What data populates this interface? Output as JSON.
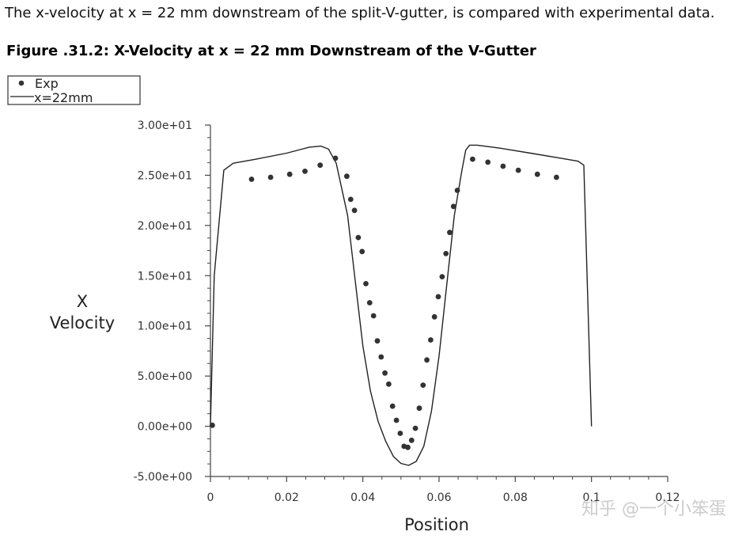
{
  "page": {
    "intro_text": "The x-velocity at x = 22 mm downstream of the split-V-gutter, is compared with experimental data.",
    "figure_caption": "Figure .31.2: X-Velocity at x = 22 mm Downstream of the V-Gutter",
    "watermark": "知乎 @一个小笨蛋"
  },
  "chart_data": {
    "type": "scatter",
    "title": "",
    "xlabel": "Position",
    "ylabel": "X\nVelocity",
    "xlim": [
      0,
      0.12
    ],
    "ylim": [
      -5,
      30
    ],
    "x_ticks": [
      0,
      0.02,
      0.04,
      0.06,
      0.08,
      0.1,
      0.12
    ],
    "x_tick_labels": [
      "0",
      "0.02",
      "0.04",
      "0.06",
      "0.08",
      "0.1",
      "0.12"
    ],
    "y_ticks": [
      -5,
      0,
      5,
      10,
      15,
      20,
      25,
      30
    ],
    "y_tick_labels": [
      "-5.00e+00",
      "0.00e+00",
      "5.00e+00",
      "1.00e+01",
      "1.50e+01",
      "2.00e+01",
      "2.50e+01",
      "3.00e+01"
    ],
    "grid": false,
    "legend_position": "top-left",
    "series": [
      {
        "name": "Exp",
        "style": "markers",
        "color": "#333333",
        "x": [
          0.0005,
          0.0108,
          0.0158,
          0.0208,
          0.0248,
          0.0288,
          0.0328,
          0.0358,
          0.0368,
          0.0378,
          0.0388,
          0.0398,
          0.0408,
          0.0418,
          0.0428,
          0.0438,
          0.0448,
          0.0458,
          0.0468,
          0.0478,
          0.0488,
          0.0498,
          0.0508,
          0.0518,
          0.0528,
          0.0538,
          0.0548,
          0.0558,
          0.0568,
          0.0578,
          0.0588,
          0.0598,
          0.0608,
          0.0618,
          0.0628,
          0.0638,
          0.0648,
          0.0688,
          0.0728,
          0.0768,
          0.0808,
          0.0858,
          0.0908
        ],
        "y": [
          0.1,
          24.6,
          24.8,
          25.1,
          25.4,
          26.0,
          26.7,
          24.9,
          22.6,
          21.5,
          18.8,
          17.4,
          14.2,
          12.3,
          11.0,
          8.5,
          6.9,
          5.3,
          4.2,
          2.0,
          0.6,
          -0.7,
          -2.0,
          -2.1,
          -1.4,
          -0.2,
          1.8,
          4.1,
          6.6,
          8.6,
          10.9,
          12.9,
          14.9,
          17.2,
          19.3,
          21.9,
          23.5,
          26.6,
          26.3,
          25.9,
          25.5,
          25.1,
          24.8
        ]
      },
      {
        "name": "x=22mm",
        "style": "line",
        "color": "#222222",
        "x": [
          0,
          0.001,
          0.0035,
          0.006,
          0.012,
          0.02,
          0.026,
          0.029,
          0.031,
          0.033,
          0.036,
          0.038,
          0.04,
          0.042,
          0.044,
          0.046,
          0.048,
          0.05,
          0.052,
          0.054,
          0.056,
          0.058,
          0.06,
          0.062,
          0.064,
          0.066,
          0.067,
          0.068,
          0.07,
          0.076,
          0.084,
          0.092,
          0.0965,
          0.098,
          0.1
        ],
        "y": [
          0,
          15.0,
          25.5,
          26.2,
          26.6,
          27.2,
          27.8,
          27.9,
          27.6,
          26.2,
          21.0,
          14.5,
          8.0,
          3.5,
          0.5,
          -1.5,
          -3.0,
          -3.7,
          -3.9,
          -3.5,
          -2.0,
          1.5,
          7.0,
          14.0,
          21.0,
          25.5,
          27.5,
          28.0,
          28.0,
          27.7,
          27.2,
          26.7,
          26.4,
          26.0,
          0.0
        ]
      }
    ]
  }
}
